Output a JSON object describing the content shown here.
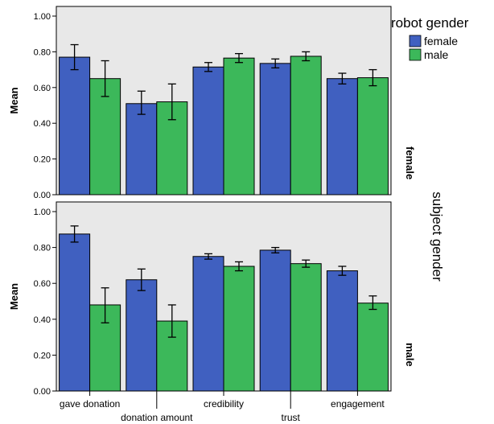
{
  "chart_data": {
    "type": "bar",
    "categories": [
      "gave donation",
      "donation amount",
      "credibility",
      "trust",
      "engagement"
    ],
    "legend_title": "robot gender",
    "facet_title": "subject gender",
    "ylabel": "Mean",
    "ylim": [
      0,
      1.0
    ],
    "yticks": [
      "0.00",
      "0.20",
      "0.40",
      "0.60",
      "0.80",
      "1.00"
    ],
    "ytick_values": [
      0,
      0.2,
      0.4,
      0.6,
      0.8,
      1.0
    ],
    "legend_position": "right",
    "colors": {
      "female": "#4060c0",
      "male": "#3cb85a",
      "panel_bg": "#e8e8e8"
    },
    "panels": [
      {
        "label": "female",
        "series": [
          {
            "name": "female",
            "values": [
              0.77,
              0.51,
              0.715,
              0.735,
              0.65
            ],
            "err_low": [
              0.7,
              0.45,
              0.69,
              0.71,
              0.62
            ],
            "err_high": [
              0.84,
              0.58,
              0.74,
              0.76,
              0.68
            ]
          },
          {
            "name": "male",
            "values": [
              0.65,
              0.52,
              0.765,
              0.775,
              0.655
            ],
            "err_low": [
              0.55,
              0.42,
              0.74,
              0.75,
              0.61
            ],
            "err_high": [
              0.75,
              0.62,
              0.79,
              0.8,
              0.7
            ]
          }
        ]
      },
      {
        "label": "male",
        "series": [
          {
            "name": "female",
            "values": [
              0.875,
              0.62,
              0.75,
              0.785,
              0.67
            ],
            "err_low": [
              0.83,
              0.56,
              0.735,
              0.77,
              0.645
            ],
            "err_high": [
              0.92,
              0.68,
              0.765,
              0.8,
              0.695
            ]
          },
          {
            "name": "male",
            "values": [
              0.48,
              0.39,
              0.695,
              0.71,
              0.49
            ],
            "err_low": [
              0.38,
              0.3,
              0.67,
              0.69,
              0.455
            ],
            "err_high": [
              0.575,
              0.48,
              0.72,
              0.73,
              0.53
            ]
          }
        ]
      }
    ]
  }
}
